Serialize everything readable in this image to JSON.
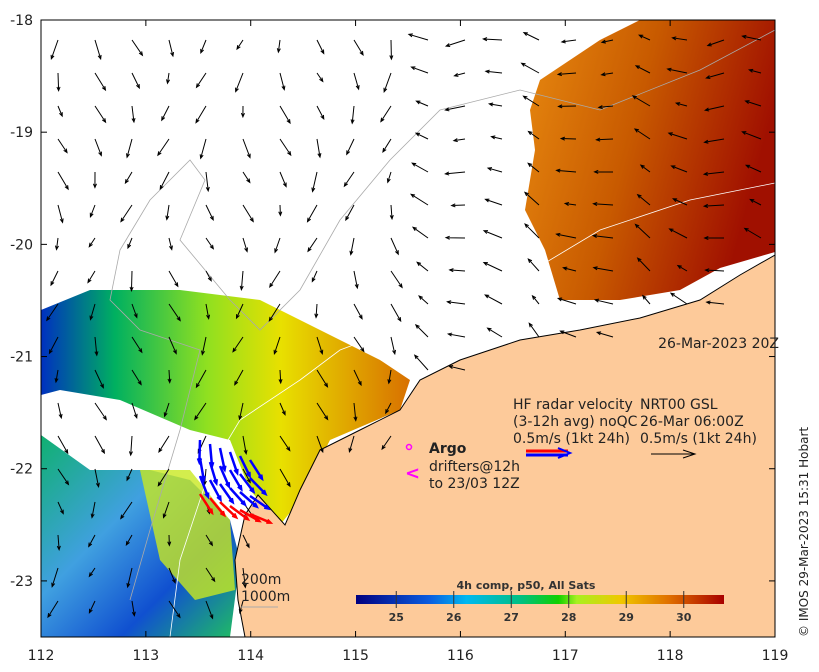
{
  "map": {
    "lon_ticks": [
      "112",
      "113",
      "114",
      "115",
      "116",
      "117",
      "118",
      "119"
    ],
    "lat_ticks": [
      "-18",
      "-19",
      "-20",
      "-21",
      "-22",
      "-23"
    ],
    "lon_range": [
      112,
      119
    ],
    "lat_range": [
      -18,
      -23.5
    ],
    "date_label": "26-Mar-2023 20Z",
    "credit": "© IMOS 29-Mar-2023 15:31 Hobart",
    "colors": {
      "land": "#fdca9a",
      "coast": "#000000",
      "isobath": "#aaaaaa"
    }
  },
  "legend": {
    "argo_label": "Argo",
    "drifters_line1": "drifters@12h",
    "drifters_line2": "to 23/03 12Z",
    "hf_line1": "HF radar velocity",
    "hf_line2": "(3-12h avg) noQC",
    "hf_line3": "0.5m/s (1kt 24h)",
    "nrt_line1": "NRT00 GSL",
    "nrt_line2": "26-Mar 06:00Z",
    "nrt_line3": "0.5m/s (1kt 24h)",
    "isobath_200": "200m",
    "isobath_1000": "1000m"
  },
  "colorbar": {
    "title": "4h comp, p50, All Sats",
    "range": [
      24.3,
      30.7
    ],
    "ticks": [
      "25",
      "26",
      "27",
      "28",
      "29",
      "30"
    ]
  }
}
